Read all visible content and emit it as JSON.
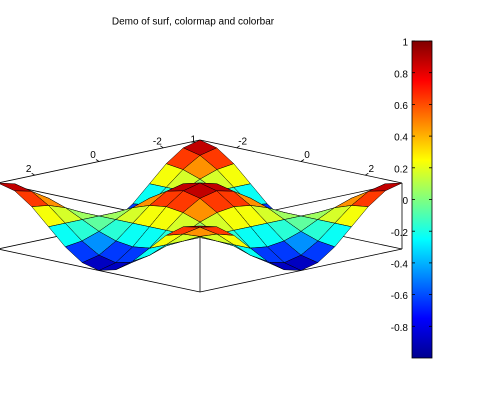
{
  "chart_data": {
    "type": "surface",
    "title": "Demo of surf, colormap and colorbar",
    "x": [
      -3.14,
      -2.62,
      -2.09,
      -1.57,
      -1.05,
      -0.52,
      0,
      0.52,
      1.05,
      1.57,
      2.09,
      2.62,
      3.14
    ],
    "y": [
      -3.14,
      -2.62,
      -2.09,
      -1.57,
      -1.05,
      -0.52,
      0,
      0.52,
      1.05,
      1.57,
      2.09,
      2.62,
      3.14
    ],
    "z": [
      [
        1,
        0.87,
        0.5,
        0,
        -0.5,
        -0.87,
        -1,
        -0.87,
        -0.5,
        0,
        0.5,
        0.87,
        1
      ],
      [
        0.87,
        0.75,
        0.43,
        0,
        -0.43,
        -0.75,
        -0.87,
        -0.75,
        -0.43,
        0,
        0.43,
        0.75,
        0.87
      ],
      [
        0.5,
        0.43,
        0.25,
        0,
        -0.25,
        -0.43,
        -0.5,
        -0.43,
        -0.25,
        0,
        0.25,
        0.43,
        0.5
      ],
      [
        0,
        0,
        0,
        0,
        0,
        0,
        0,
        0,
        0,
        0,
        0,
        0,
        0
      ],
      [
        -0.5,
        -0.43,
        -0.25,
        0,
        0.25,
        0.43,
        0.5,
        0.43,
        0.25,
        0,
        -0.25,
        -0.43,
        -0.5
      ],
      [
        -0.87,
        -0.75,
        -0.43,
        0,
        0.43,
        0.75,
        0.87,
        0.75,
        0.43,
        0,
        -0.43,
        -0.75,
        -0.87
      ],
      [
        -1,
        -0.87,
        -0.5,
        0,
        0.5,
        0.87,
        1,
        0.87,
        0.5,
        0,
        -0.5,
        -0.87,
        -1
      ],
      [
        -0.87,
        -0.75,
        -0.43,
        0,
        0.43,
        0.75,
        0.87,
        0.75,
        0.43,
        0,
        -0.43,
        -0.75,
        -0.87
      ],
      [
        -0.5,
        -0.43,
        -0.25,
        0,
        0.25,
        0.43,
        0.5,
        0.43,
        0.25,
        0,
        -0.25,
        -0.43,
        -0.5
      ],
      [
        0,
        0,
        0,
        0,
        0,
        0,
        0,
        0,
        0,
        0,
        0,
        0,
        0
      ],
      [
        0.5,
        0.43,
        0.25,
        0,
        -0.25,
        -0.43,
        -0.5,
        -0.43,
        -0.25,
        0,
        0.25,
        0.43,
        0.5
      ],
      [
        0.87,
        0.75,
        0.43,
        0,
        -0.43,
        -0.75,
        -0.87,
        -0.75,
        -0.43,
        0,
        0.43,
        0.75,
        0.87
      ],
      [
        1,
        0.87,
        0.5,
        0,
        -0.5,
        -0.87,
        -1,
        -0.87,
        -0.5,
        0,
        0.5,
        0.87,
        1
      ]
    ],
    "xlim": [
      -3.14,
      3.14
    ],
    "ylim": [
      -3.14,
      3.14
    ],
    "zlim": [
      -1,
      1
    ],
    "xticks": [
      -2,
      0,
      2
    ],
    "yticks": [
      -2,
      0,
      2
    ],
    "zticks": [
      1
    ],
    "colormap": "jet",
    "clim": [
      -1,
      1
    ],
    "colorbar_ticks": [
      -0.8,
      -0.6,
      -0.4,
      -0.2,
      0,
      0.2,
      0.4,
      0.6,
      0.8,
      1
    ]
  }
}
